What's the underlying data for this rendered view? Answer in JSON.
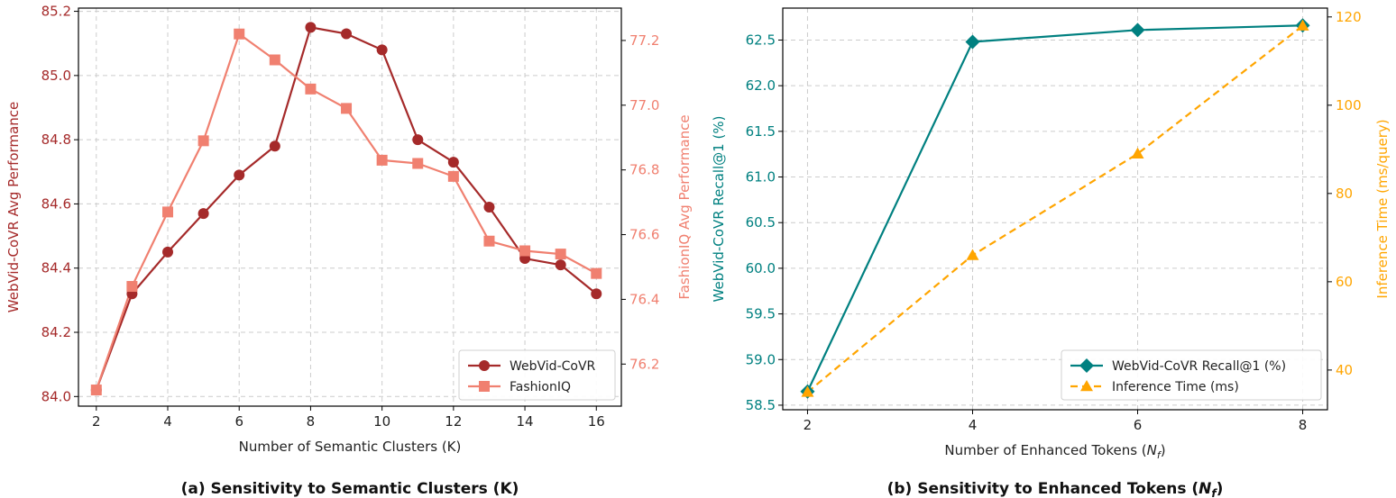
{
  "colors": {
    "webvid_a": "#a52a2a",
    "fashion": "#f08070",
    "teal": "#008080",
    "orange": "#ffa500",
    "grid": "#cccccc",
    "text": "#222222"
  },
  "chart_data": [
    {
      "type": "line",
      "caption": "(a) Sensitivity to Semantic Clusters (K)",
      "xlabel": "Number of Semantic Clusters (K)",
      "ylabel_left": "WebVid-CoVR Avg Performance",
      "ylabel_right": "FashionIQ Avg Performance",
      "xlim": [
        1.5,
        16.7
      ],
      "ylim_left": [
        83.97,
        85.21
      ],
      "ylim_right": [
        76.07,
        77.3
      ],
      "xticks": [
        2,
        4,
        6,
        8,
        10,
        12,
        14,
        16
      ],
      "yticks_left": [
        84.0,
        84.2,
        84.4,
        84.6,
        84.8,
        85.0,
        85.2
      ],
      "yticks_right": [
        76.2,
        76.4,
        76.6,
        76.8,
        77.0,
        77.2
      ],
      "legend_position": "lower-right",
      "series": [
        {
          "name": "WebVid-CoVR",
          "axis": "left",
          "marker": "circle",
          "x": [
            2,
            3,
            4,
            5,
            6,
            7,
            8,
            9,
            10,
            11,
            12,
            13,
            14,
            15,
            16
          ],
          "values": [
            84.02,
            84.32,
            84.45,
            84.57,
            84.69,
            84.78,
            85.15,
            85.13,
            85.08,
            84.8,
            84.73,
            84.59,
            84.43,
            84.41,
            84.32
          ]
        },
        {
          "name": "FashionIQ",
          "axis": "right",
          "marker": "square",
          "x": [
            2,
            3,
            4,
            5,
            6,
            7,
            8,
            9,
            10,
            11,
            12,
            13,
            14,
            15,
            16
          ],
          "values": [
            76.12,
            76.44,
            76.67,
            76.89,
            77.22,
            77.14,
            77.05,
            76.99,
            76.83,
            76.82,
            76.78,
            76.58,
            76.55,
            76.54,
            76.48
          ]
        }
      ]
    },
    {
      "type": "line",
      "caption_prefix": "(b) Sensitivity to Enhanced Tokens (",
      "caption_var": "N",
      "caption_sub": "f",
      "caption_suffix": ")",
      "xlabel_prefix": "Number of Enhanced Tokens (",
      "xlabel_var": "N",
      "xlabel_sub": "f",
      "xlabel_suffix": ")",
      "ylabel_left": "WebVid-CoVR Recall@1 (%)",
      "ylabel_right": "Inference Time (ms/query)",
      "xlim": [
        1.7,
        8.3
      ],
      "ylim_left": [
        58.45,
        62.85
      ],
      "ylim_right": [
        31.0,
        122.0
      ],
      "xticks": [
        2,
        4,
        6,
        8
      ],
      "yticks_left": [
        58.5,
        59.0,
        59.5,
        60.0,
        60.5,
        61.0,
        61.5,
        62.0,
        62.5
      ],
      "yticks_right": [
        40,
        60,
        80,
        100,
        120
      ],
      "legend_position": "lower-right",
      "series": [
        {
          "name": "WebVid-CoVR Recall@1 (%)",
          "axis": "left",
          "marker": "diamond",
          "x": [
            2,
            4,
            6,
            8
          ],
          "values": [
            58.65,
            62.48,
            62.61,
            62.66
          ]
        },
        {
          "name": "Inference Time (ms)",
          "axis": "right",
          "marker": "triangle",
          "dashed": true,
          "x": [
            2,
            4,
            6,
            8
          ],
          "values": [
            35,
            66,
            89,
            118
          ]
        }
      ]
    }
  ]
}
